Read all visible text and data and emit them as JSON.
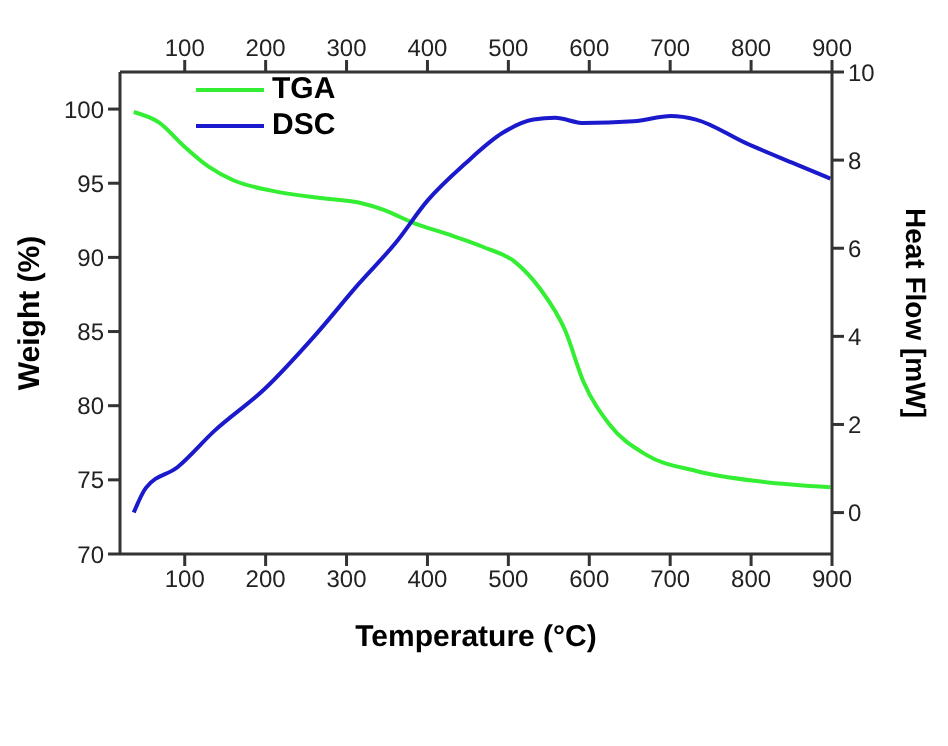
{
  "chart_data": {
    "type": "line",
    "xlabel": "Temperature (°C)",
    "ylabel": "Weight (%)",
    "y2label": "Heat Flow [mW]",
    "xlim": [
      20,
      900
    ],
    "xticks": [
      100,
      200,
      300,
      400,
      500,
      600,
      700,
      800,
      900
    ],
    "x2lim": [
      20,
      900
    ],
    "x2ticks": [
      100,
      200,
      300,
      400,
      500,
      600,
      700,
      800,
      900
    ],
    "ylim": [
      70,
      102.5
    ],
    "yticks": [
      70,
      75,
      80,
      85,
      90,
      95,
      100
    ],
    "y2lim": [
      -0.94,
      10
    ],
    "y2ticks": [
      0,
      2,
      4,
      6,
      8,
      10
    ],
    "grid": false,
    "legend": "top left",
    "marker": "none",
    "line_style": "solid",
    "series": [
      {
        "name": "TGA",
        "color": "#33ee33",
        "x": [
          37,
          68,
          99,
          130,
          160,
          207,
          268,
          315,
          346,
          384,
          423,
          469,
          508,
          539,
          570,
          593,
          624,
          670,
          732,
          809,
          898
        ],
        "values": [
          99.8,
          99.1,
          97.5,
          96.1,
          95.2,
          94.5,
          94.0,
          93.7,
          93.2,
          92.3,
          91.6,
          90.7,
          89.7,
          87.9,
          85.1,
          81.6,
          78.8,
          76.7,
          75.6,
          74.9,
          74.5
        ]
      },
      {
        "name": "DSC",
        "color": "#1a1acc",
        "axis": "y2",
        "x": [
          37,
          52,
          91,
          137,
          199,
          260,
          315,
          361,
          400,
          446,
          493,
          531,
          558,
          593,
          655,
          701,
          732,
          793,
          855,
          898
        ],
        "values": [
          0.0,
          0.56,
          1.03,
          1.86,
          2.81,
          4.0,
          5.19,
          6.13,
          7.08,
          7.91,
          8.62,
          8.92,
          8.96,
          8.84,
          8.88,
          9.0,
          8.92,
          8.39,
          7.91,
          7.58
        ]
      }
    ]
  }
}
